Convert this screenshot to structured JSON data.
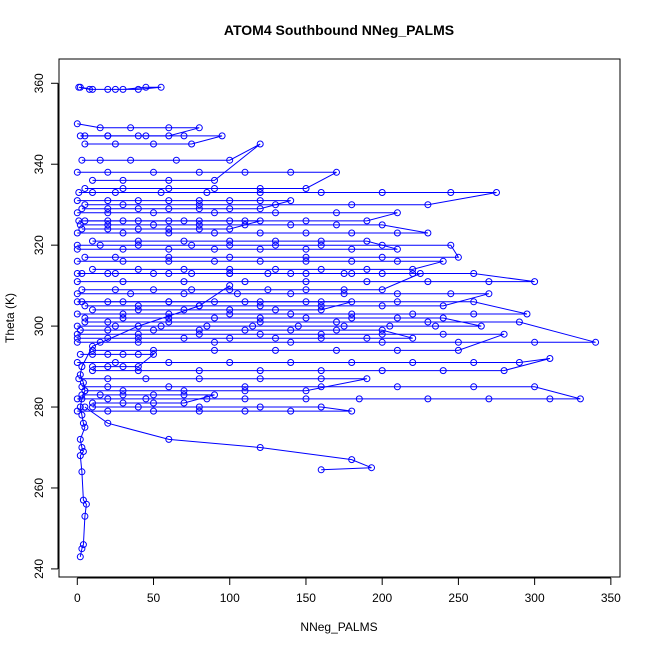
{
  "chart_data": {
    "type": "line",
    "title": "ATOM4 Southbound NNeg_PALMS",
    "xlabel": "NNeg_PALMS",
    "ylabel": "Theta (K)",
    "xlim": [
      -12,
      356
    ],
    "ylim": [
      238,
      366
    ],
    "xticks": [
      0,
      50,
      100,
      150,
      200,
      250,
      300,
      350
    ],
    "yticks": [
      240,
      260,
      280,
      300,
      320,
      340,
      360
    ],
    "grid": false,
    "legend": "none",
    "marker": "open-circle",
    "series_color": "#0000ff",
    "series": [
      {
        "x": [
          2,
          3,
          4,
          5,
          6,
          4,
          3,
          2,
          4,
          3,
          2,
          5,
          4,
          3,
          2,
          3,
          5,
          4,
          2,
          3,
          10,
          40,
          80,
          100
        ],
        "y": [
          243,
          245,
          246,
          253,
          256,
          257,
          264,
          268,
          269,
          270,
          272,
          275,
          276,
          278,
          280,
          282,
          284,
          286,
          288,
          290,
          295,
          300,
          305,
          310
        ]
      },
      {
        "x": [
          0,
          15,
          40,
          90,
          140,
          200,
          250,
          300,
          340,
          290,
          230,
          170,
          120,
          60,
          20,
          5
        ],
        "y": [
          296,
          296,
          296,
          296,
          296,
          296,
          296,
          296,
          296,
          301,
          301,
          301,
          301,
          301,
          301,
          301
        ]
      },
      {
        "x": [
          160,
          193,
          180,
          120,
          60,
          20,
          5
        ],
        "y": [
          264.5,
          265,
          267,
          270,
          272,
          276,
          280
        ]
      },
      {
        "x": [
          1,
          10,
          25,
          55,
          85,
          120,
          160,
          200,
          245,
          275,
          230,
          180,
          130,
          80,
          30,
          5
        ],
        "y": [
          333,
          333,
          333,
          333,
          333,
          333,
          333,
          333,
          333,
          333,
          330,
          330,
          330,
          330,
          330,
          330
        ]
      },
      {
        "x": [
          0,
          20,
          45,
          85,
          110,
          150,
          185,
          230,
          270,
          310,
          330,
          300,
          260,
          210,
          160,
          110,
          60,
          20,
          3
        ],
        "y": [
          282,
          282,
          282,
          282,
          282,
          282,
          282,
          282,
          282,
          282,
          282,
          285,
          285,
          285,
          285,
          285,
          285,
          285,
          285
        ]
      },
      {
        "x": [
          0,
          15,
          40,
          75,
          100,
          130,
          160,
          200,
          245,
          250,
          200,
          150,
          100,
          60,
          25,
          5
        ],
        "y": [
          320,
          320,
          320,
          320,
          320,
          320,
          320,
          320,
          320,
          317,
          317,
          317,
          317,
          317,
          317,
          317
        ]
      },
      {
        "x": [
          2,
          20,
          45,
          70,
          95,
          75,
          50,
          25,
          5
        ],
        "y": [
          347,
          347,
          347,
          347,
          347,
          345,
          345,
          345,
          345
        ]
      },
      {
        "x": [
          1,
          8,
          20,
          30,
          45,
          55,
          40,
          25,
          10,
          2
        ],
        "y": [
          359,
          358.5,
          358.5,
          358.5,
          359,
          359,
          358.5,
          358.5,
          358.5,
          359
        ]
      },
      {
        "x": [
          0,
          30,
          60,
          100,
          140,
          180,
          220,
          260,
          295,
          260,
          210,
          160,
          110,
          60,
          20,
          3
        ],
        "y": [
          303,
          303,
          303,
          303,
          303,
          303,
          303,
          303,
          303,
          306,
          306,
          306,
          306,
          306,
          306,
          306
        ]
      },
      {
        "x": [
          0,
          25,
          60,
          100,
          140,
          180,
          220,
          260,
          290,
          310,
          280,
          240,
          200,
          160,
          120,
          80,
          40,
          10
        ],
        "y": [
          291,
          291,
          291,
          291,
          291,
          291,
          291,
          291,
          291,
          292,
          289,
          289,
          289,
          289,
          289,
          289,
          289,
          289
        ]
      },
      {
        "x": [
          0,
          20,
          50,
          90,
          130,
          170,
          210,
          190,
          150,
          110,
          70,
          30,
          5
        ],
        "y": [
          328,
          328,
          328,
          328,
          328,
          328,
          328,
          326,
          326,
          326,
          326,
          326,
          326
        ]
      },
      {
        "x": [
          0,
          30,
          70,
          110,
          150,
          190,
          230,
          270,
          300,
          260,
          220,
          180,
          140,
          100,
          60,
          20,
          3
        ],
        "y": [
          311,
          311,
          311,
          311,
          311,
          311,
          311,
          311,
          311,
          313,
          313,
          313,
          313,
          313,
          313,
          313,
          313
        ]
      },
      {
        "x": [
          0,
          20,
          50,
          80,
          110,
          140,
          180,
          160,
          120,
          80,
          40,
          10
        ],
        "y": [
          279,
          279,
          279,
          279,
          279,
          279,
          279,
          280,
          280,
          280,
          280,
          280
        ]
      },
      {
        "x": [
          3,
          15,
          35,
          65,
          100,
          120,
          90,
          60,
          30,
          10
        ],
        "y": [
          341,
          341,
          341,
          341,
          341,
          345,
          336,
          336,
          336,
          336
        ]
      },
      {
        "x": [
          0,
          40,
          80,
          120,
          160,
          200,
          240,
          280,
          250,
          210,
          170,
          130,
          90,
          50,
          10
        ],
        "y": [
          298,
          298,
          298,
          298,
          298,
          298,
          298,
          298,
          294,
          294,
          294,
          294,
          294,
          294,
          294
        ]
      },
      {
        "x": [
          0,
          30,
          60,
          90,
          120,
          150,
          180,
          210,
          230,
          200,
          170,
          140,
          110,
          80,
          50,
          20,
          2
        ],
        "y": [
          323,
          323,
          323,
          323,
          323,
          323,
          323,
          323,
          323,
          325,
          325,
          325,
          325,
          325,
          325,
          325,
          325
        ]
      },
      {
        "x": [
          0,
          35,
          70,
          105,
          140,
          175,
          210,
          245,
          270,
          240,
          200,
          160,
          120,
          80,
          40,
          5
        ],
        "y": [
          308,
          308,
          308,
          308,
          308,
          308,
          308,
          308,
          308,
          305,
          305,
          305,
          305,
          305,
          305,
          305
        ]
      },
      {
        "x": [
          1,
          20,
          45,
          80,
          120,
          160,
          190,
          150,
          110,
          70,
          30,
          5
        ],
        "y": [
          287,
          287,
          287,
          287,
          287,
          287,
          287,
          284,
          284,
          284,
          284,
          284
        ]
      },
      {
        "x": [
          0,
          15,
          35,
          60,
          80,
          60,
          40,
          20,
          5
        ],
        "y": [
          350,
          349,
          349,
          349,
          349,
          347,
          347,
          347,
          347
        ]
      },
      {
        "x": [
          0,
          30,
          60,
          90,
          120,
          150,
          180,
          210,
          240,
          220,
          190,
          160,
          130,
          100,
          70,
          40,
          10
        ],
        "y": [
          316,
          316,
          316,
          316,
          316,
          316,
          316,
          316,
          316,
          314,
          314,
          314,
          314,
          314,
          314,
          314,
          314
        ]
      },
      {
        "x": [
          0,
          20,
          50,
          80,
          110,
          140,
          170,
          150,
          120,
          90,
          60,
          30,
          5
        ],
        "y": [
          338,
          338,
          338,
          338,
          338,
          338,
          338,
          334,
          334,
          334,
          334,
          334,
          334
        ]
      },
      {
        "x": [
          0,
          25,
          55,
          85,
          115,
          145,
          175,
          205,
          235,
          265,
          240,
          210,
          180,
          150,
          120,
          90,
          60,
          30,
          5
        ],
        "y": [
          300,
          300,
          300,
          300,
          300,
          300,
          300,
          300,
          300,
          300,
          302,
          302,
          302,
          302,
          302,
          302,
          302,
          302,
          302
        ]
      },
      {
        "x": [
          2,
          10,
          20,
          30,
          40,
          50,
          40,
          30,
          20,
          10
        ],
        "y": [
          293,
          293,
          293,
          293,
          293,
          293,
          290,
          290,
          290,
          290
        ]
      },
      {
        "x": [
          0,
          30,
          60,
          90,
          120,
          150,
          180,
          210,
          190,
          160,
          130,
          100,
          70,
          40,
          10
        ],
        "y": [
          319,
          319,
          319,
          319,
          319,
          319,
          319,
          319,
          321,
          321,
          321,
          321,
          321,
          321,
          321
        ]
      },
      {
        "x": [
          0,
          20,
          40,
          60,
          80,
          100,
          120,
          140,
          120,
          100,
          80,
          60,
          40,
          20,
          3
        ],
        "y": [
          331,
          331,
          331,
          331,
          331,
          331,
          331,
          331,
          329,
          329,
          329,
          329,
          329,
          329,
          329
        ]
      },
      {
        "x": [
          0,
          25,
          50,
          75,
          100,
          125,
          150,
          175,
          200,
          225,
          200,
          175,
          150,
          125,
          100,
          75,
          50,
          25,
          3
        ],
        "y": [
          313,
          313,
          313,
          313,
          313,
          313,
          313,
          313,
          313,
          313,
          309,
          309,
          309,
          309,
          309,
          309,
          309,
          309,
          309
        ]
      },
      {
        "x": [
          0,
          20,
          40,
          70,
          100,
          130,
          160,
          190,
          220,
          200,
          170,
          140,
          110,
          80,
          50,
          20,
          2
        ],
        "y": [
          297,
          297,
          297,
          297,
          297,
          297,
          297,
          297,
          297,
          299,
          299,
          299,
          299,
          299,
          299,
          299,
          299
        ]
      },
      {
        "x": [
          3,
          15,
          30,
          50,
          70,
          90,
          70,
          50,
          30,
          10
        ],
        "y": [
          283,
          283,
          283,
          283,
          283,
          283,
          281,
          281,
          281,
          281
        ]
      },
      {
        "x": [
          1,
          20,
          40,
          60,
          80,
          100,
          120,
          100,
          80,
          60,
          40,
          20,
          3
        ],
        "y": [
          326,
          326,
          326,
          326,
          326,
          326,
          326,
          324,
          324,
          324,
          324,
          324,
          324
        ]
      },
      {
        "x": [
          0,
          30,
          60,
          90,
          120,
          150,
          180,
          160,
          130,
          100,
          70,
          40,
          10
        ],
        "y": [
          306,
          306,
          306,
          306,
          306,
          306,
          306,
          304,
          304,
          304,
          304,
          304,
          304
        ]
      }
    ]
  }
}
